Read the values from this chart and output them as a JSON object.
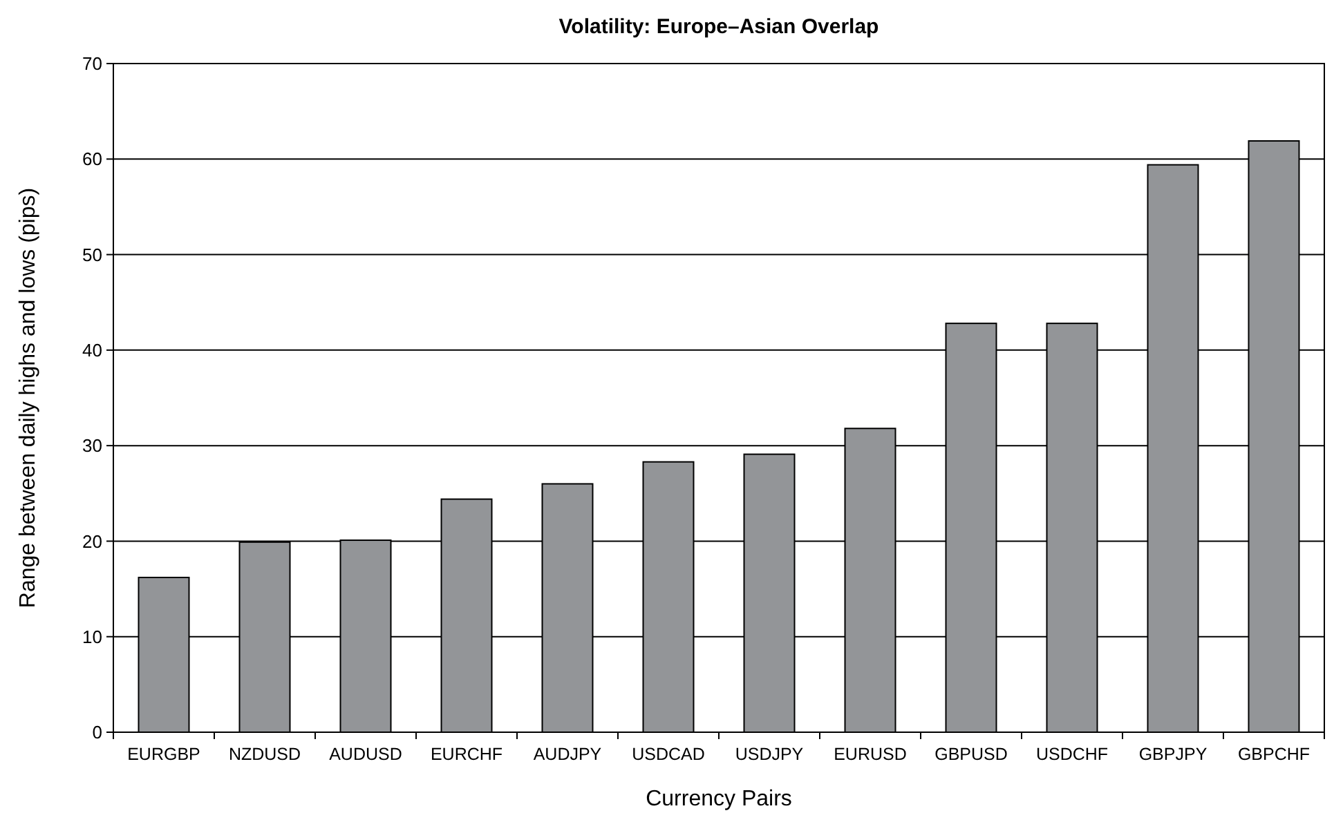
{
  "chart_data": {
    "type": "bar",
    "title": "Volatility: Europe–Asian Overlap",
    "xlabel": "Currency Pairs",
    "ylabel": "Range between daily highs and lows (pips)",
    "categories": [
      "EURGBP",
      "NZDUSD",
      "AUDUSD",
      "EURCHF",
      "AUDJPY",
      "USDCAD",
      "USDJPY",
      "EURUSD",
      "GBPUSD",
      "USDCHF",
      "GBPJPY",
      "GBPCHF"
    ],
    "values": [
      16.2,
      19.9,
      20.1,
      24.4,
      26.0,
      28.3,
      29.1,
      31.8,
      42.8,
      42.8,
      59.4,
      61.9
    ],
    "color": "#939598",
    "ylim": [
      0,
      70
    ],
    "yticks": [
      0,
      10,
      20,
      30,
      40,
      50,
      60,
      70
    ],
    "grid": "y"
  }
}
